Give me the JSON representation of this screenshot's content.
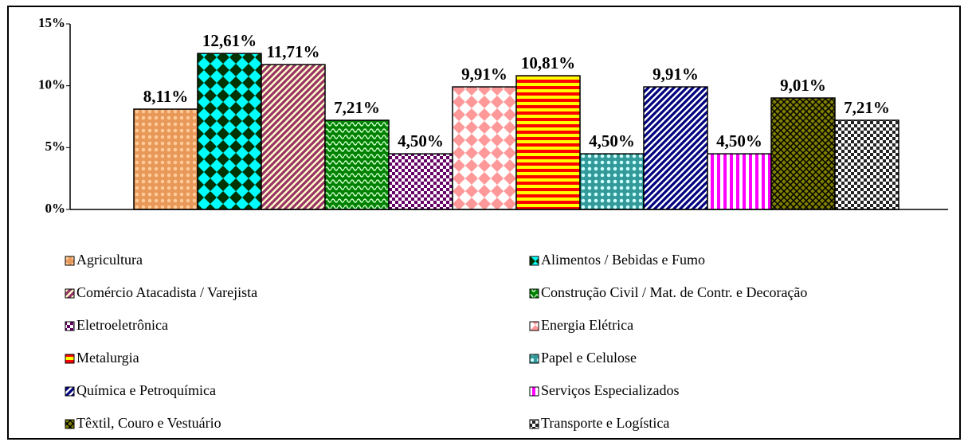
{
  "chart_data": {
    "type": "bar",
    "categories": [
      "Agricultura",
      "Alimentos / Bebidas e Fumo",
      "Comércio Atacadista / Varejista",
      "Construção Civil / Mat. de Contr. e Decoração",
      "Eletroeletrônica",
      "Energia Elétrica",
      "Metalurgia",
      "Papel e Celulose",
      "Química e Petroquímica",
      "Serviços Especializados",
      "Têxtil, Couro e Vestuário",
      "Transporte e Logística"
    ],
    "values": [
      8.11,
      12.61,
      11.71,
      7.21,
      4.5,
      9.91,
      10.81,
      4.5,
      9.91,
      4.5,
      9.01,
      7.21
    ],
    "value_labels": [
      "8,11%",
      "12,61%",
      "11,71%",
      "7,21%",
      "4,50%",
      "9,91%",
      "10,81%",
      "4,50%",
      "9,91%",
      "4,50%",
      "9,01%",
      "7,21%"
    ],
    "colors": [
      "#e89858",
      "#00ffff",
      "#993366",
      "#008000",
      "#660066",
      "#ff9999",
      "#ff0000",
      "#339999",
      "#000080",
      "#ff00ff",
      "#808000",
      "#222222"
    ],
    "pattern_colors": [
      "#ffcc99",
      "#003300",
      "#ffffcc",
      "#ccffcc",
      "#ffffff",
      "#ffffff",
      "#ffff00",
      "#ccffff",
      "#ffffff",
      "#ffffff",
      "#000000",
      "#ffffff"
    ],
    "ylim": [
      0,
      15
    ],
    "yticks": [
      {
        "value": 0,
        "label": "0%"
      },
      {
        "value": 5,
        "label": "5%"
      },
      {
        "value": 10,
        "label": "10%"
      },
      {
        "value": 15,
        "label": "15%"
      }
    ],
    "legend": "bottom"
  }
}
